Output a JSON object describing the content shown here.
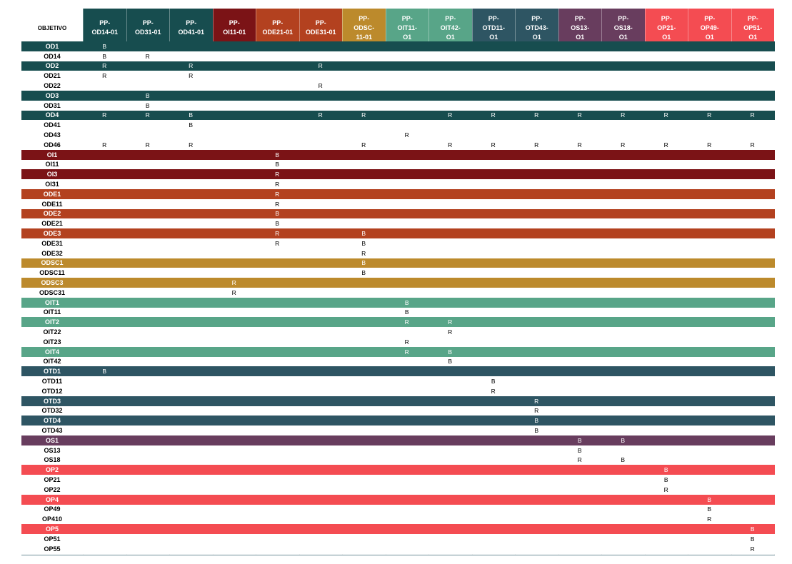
{
  "header_label": "OBJETIVO",
  "colors": {
    "OD": "#174d4f",
    "OI": "#7b1316",
    "ODE": "#b3411f",
    "ODSC": "#bc8a2c",
    "OIT": "#58a588",
    "OTD": "#2e5563",
    "OS": "#683d5e",
    "OP": "#f44c52"
  },
  "columns": [
    {
      "id": "od14",
      "label": "PP-\nOD14-01",
      "group": "OD"
    },
    {
      "id": "od31",
      "label": "PP-\nOD31-01",
      "group": "OD"
    },
    {
      "id": "od41",
      "label": "PP-\nOD41-01",
      "group": "OD"
    },
    {
      "id": "oi11",
      "label": "PP-\nOI11-01",
      "group": "OI"
    },
    {
      "id": "ode21",
      "label": "PP-\nODE21-01",
      "group": "ODE"
    },
    {
      "id": "ode31",
      "label": "PP-\nODE31-01",
      "group": "ODE"
    },
    {
      "id": "odsc11",
      "label": "PP-\nODSC-\n11-01",
      "group": "ODSC"
    },
    {
      "id": "oit11",
      "label": "PP-\nOIT11-\nO1",
      "group": "OIT"
    },
    {
      "id": "oit42",
      "label": "PP-\nOIT42-\nO1",
      "group": "OIT"
    },
    {
      "id": "otd11",
      "label": "PP-\nOTD11-\nO1",
      "group": "OTD"
    },
    {
      "id": "otd43",
      "label": "PP-\nOTD43-\nO1",
      "group": "OTD"
    },
    {
      "id": "os13",
      "label": "PP-\nOS13-\nO1",
      "group": "OS"
    },
    {
      "id": "os18",
      "label": "PP-\nOS18-\nO1",
      "group": "OS"
    },
    {
      "id": "op21",
      "label": "PP-\nOP21-\nO1",
      "group": "OP"
    },
    {
      "id": "op49",
      "label": "PP-\nOP49-\nO1",
      "group": "OP"
    },
    {
      "id": "op51",
      "label": "PP-\nOP51-\nO1",
      "group": "OP"
    }
  ],
  "rows": [
    {
      "label": "OD1",
      "type": "parent",
      "group": "OD",
      "cells": [
        "B",
        "",
        "",
        "",
        "",
        "",
        "",
        "",
        "",
        "",
        "",
        "",
        "",
        "",
        "",
        ""
      ]
    },
    {
      "label": "OD14",
      "type": "child",
      "group": "OD",
      "cells": [
        "B",
        "R",
        "",
        "",
        "",
        "",
        "",
        "",
        "",
        "",
        "",
        "",
        "",
        "",
        "",
        ""
      ]
    },
    {
      "label": "OD2",
      "type": "parent",
      "group": "OD",
      "cells": [
        "R",
        "",
        "R",
        "",
        "",
        "R",
        "",
        "",
        "",
        "",
        "",
        "",
        "",
        "",
        "",
        ""
      ]
    },
    {
      "label": "OD21",
      "type": "child",
      "group": "OD",
      "cells": [
        "R",
        "",
        "R",
        "",
        "",
        "",
        "",
        "",
        "",
        "",
        "",
        "",
        "",
        "",
        "",
        ""
      ]
    },
    {
      "label": "OD22",
      "type": "child",
      "group": "OD",
      "cells": [
        "",
        "",
        "",
        "",
        "",
        "R",
        "",
        "",
        "",
        "",
        "",
        "",
        "",
        "",
        "",
        ""
      ]
    },
    {
      "label": "OD3",
      "type": "parent",
      "group": "OD",
      "cells": [
        "",
        "B",
        "",
        "",
        "",
        "",
        "",
        "",
        "",
        "",
        "",
        "",
        "",
        "",
        "",
        ""
      ]
    },
    {
      "label": "OD31",
      "type": "child",
      "group": "OD",
      "cells": [
        "",
        "B",
        "",
        "",
        "",
        "",
        "",
        "",
        "",
        "",
        "",
        "",
        "",
        "",
        "",
        ""
      ]
    },
    {
      "label": "OD4",
      "type": "parent",
      "group": "OD",
      "cells": [
        "R",
        "R",
        "B",
        "",
        "",
        "R",
        "R",
        "",
        "R",
        "R",
        "R",
        "R",
        "R",
        "R",
        "R",
        "R"
      ]
    },
    {
      "label": "OD41",
      "type": "child",
      "group": "OD",
      "cells": [
        "",
        "",
        "B",
        "",
        "",
        "",
        "",
        "",
        "",
        "",
        "",
        "",
        "",
        "",
        "",
        ""
      ]
    },
    {
      "label": "OD43",
      "type": "child",
      "group": "OD",
      "cells": [
        "",
        "",
        "",
        "",
        "",
        "",
        "",
        "R",
        "",
        "",
        "",
        "",
        "",
        "",
        "",
        ""
      ]
    },
    {
      "label": "OD46",
      "type": "child",
      "group": "OD",
      "cells": [
        "R",
        "R",
        "R",
        "",
        "",
        "",
        "R",
        "",
        "R",
        "R",
        "R",
        "R",
        "R",
        "R",
        "R",
        "R"
      ]
    },
    {
      "label": "OI1",
      "type": "parent",
      "group": "OI",
      "cells": [
        "",
        "",
        "",
        "",
        "B",
        "",
        "",
        "",
        "",
        "",
        "",
        "",
        "",
        "",
        "",
        ""
      ]
    },
    {
      "label": "OI11",
      "type": "child",
      "group": "OI",
      "cells": [
        "",
        "",
        "",
        "",
        "B",
        "",
        "",
        "",
        "",
        "",
        "",
        "",
        "",
        "",
        "",
        ""
      ]
    },
    {
      "label": "OI3",
      "type": "parent",
      "group": "OI",
      "cells": [
        "",
        "",
        "",
        "",
        "R",
        "",
        "",
        "",
        "",
        "",
        "",
        "",
        "",
        "",
        "",
        ""
      ]
    },
    {
      "label": "OI31",
      "type": "child",
      "group": "OI",
      "cells": [
        "",
        "",
        "",
        "",
        "R",
        "",
        "",
        "",
        "",
        "",
        "",
        "",
        "",
        "",
        "",
        ""
      ]
    },
    {
      "label": "ODE1",
      "type": "parent",
      "group": "ODE",
      "cells": [
        "",
        "",
        "",
        "",
        "R",
        "",
        "",
        "",
        "",
        "",
        "",
        "",
        "",
        "",
        "",
        ""
      ]
    },
    {
      "label": "ODE11",
      "type": "child",
      "group": "ODE",
      "cells": [
        "",
        "",
        "",
        "",
        "R",
        "",
        "",
        "",
        "",
        "",
        "",
        "",
        "",
        "",
        "",
        ""
      ]
    },
    {
      "label": "ODE2",
      "type": "parent",
      "group": "ODE",
      "cells": [
        "",
        "",
        "",
        "",
        "B",
        "",
        "",
        "",
        "",
        "",
        "",
        "",
        "",
        "",
        "",
        ""
      ]
    },
    {
      "label": "ODE21",
      "type": "child",
      "group": "ODE",
      "cells": [
        "",
        "",
        "",
        "",
        "B",
        "",
        "",
        "",
        "",
        "",
        "",
        "",
        "",
        "",
        "",
        ""
      ]
    },
    {
      "label": "ODE3",
      "type": "parent",
      "group": "ODE",
      "cells": [
        "",
        "",
        "",
        "",
        "R",
        "",
        "B",
        "",
        "",
        "",
        "",
        "",
        "",
        "",
        "",
        ""
      ]
    },
    {
      "label": "ODE31",
      "type": "child",
      "group": "ODE",
      "cells": [
        "",
        "",
        "",
        "",
        "R",
        "",
        "B",
        "",
        "",
        "",
        "",
        "",
        "",
        "",
        "",
        ""
      ]
    },
    {
      "label": "ODE32",
      "type": "child",
      "group": "ODE",
      "cells": [
        "",
        "",
        "",
        "",
        "",
        "",
        "R",
        "",
        "",
        "",
        "",
        "",
        "",
        "",
        "",
        ""
      ]
    },
    {
      "label": "ODSC1",
      "type": "parent",
      "group": "ODSC",
      "cells": [
        "",
        "",
        "",
        "",
        "",
        "",
        "B",
        "",
        "",
        "",
        "",
        "",
        "",
        "",
        "",
        ""
      ]
    },
    {
      "label": "ODSC11",
      "type": "child",
      "group": "ODSC",
      "cells": [
        "",
        "",
        "",
        "",
        "",
        "",
        "B",
        "",
        "",
        "",
        "",
        "",
        "",
        "",
        "",
        ""
      ]
    },
    {
      "label": "ODSC3",
      "type": "parent",
      "group": "ODSC",
      "cells": [
        "",
        "",
        "",
        "R",
        "",
        "",
        "",
        "",
        "",
        "",
        "",
        "",
        "",
        "",
        "",
        ""
      ]
    },
    {
      "label": "ODSC31",
      "type": "child",
      "group": "ODSC",
      "cells": [
        "",
        "",
        "",
        "R",
        "",
        "",
        "",
        "",
        "",
        "",
        "",
        "",
        "",
        "",
        "",
        ""
      ]
    },
    {
      "label": "OIT1",
      "type": "parent",
      "group": "OIT",
      "cells": [
        "",
        "",
        "",
        "",
        "",
        "",
        "",
        "B",
        "",
        "",
        "",
        "",
        "",
        "",
        "",
        ""
      ]
    },
    {
      "label": "OIT11",
      "type": "child",
      "group": "OIT",
      "cells": [
        "",
        "",
        "",
        "",
        "",
        "",
        "",
        "B",
        "",
        "",
        "",
        "",
        "",
        "",
        "",
        ""
      ]
    },
    {
      "label": "OIT2",
      "type": "parent",
      "group": "OIT",
      "cells": [
        "",
        "",
        "",
        "",
        "",
        "",
        "",
        "R",
        "R",
        "",
        "",
        "",
        "",
        "",
        "",
        ""
      ]
    },
    {
      "label": "OIT22",
      "type": "child",
      "group": "OIT",
      "cells": [
        "",
        "",
        "",
        "",
        "",
        "",
        "",
        "",
        "R",
        "",
        "",
        "",
        "",
        "",
        "",
        ""
      ]
    },
    {
      "label": "OIT23",
      "type": "child",
      "group": "OIT",
      "cells": [
        "",
        "",
        "",
        "",
        "",
        "",
        "",
        "R",
        "",
        "",
        "",
        "",
        "",
        "",
        "",
        ""
      ]
    },
    {
      "label": "OIT4",
      "type": "parent",
      "group": "OIT",
      "cells": [
        "",
        "",
        "",
        "",
        "",
        "",
        "",
        "R",
        "B",
        "",
        "",
        "",
        "",
        "",
        "",
        ""
      ]
    },
    {
      "label": "OIT42",
      "type": "child",
      "group": "OIT",
      "cells": [
        "",
        "",
        "",
        "",
        "",
        "",
        "",
        "",
        "B",
        "",
        "",
        "",
        "",
        "",
        "",
        ""
      ]
    },
    {
      "label": "OTD1",
      "type": "parent",
      "group": "OTD",
      "cells": [
        "B",
        "",
        "",
        "",
        "",
        "",
        "",
        "",
        "",
        "",
        "",
        "",
        "",
        "",
        "",
        ""
      ]
    },
    {
      "label": "OTD11",
      "type": "child",
      "group": "OTD",
      "cells": [
        "",
        "",
        "",
        "",
        "",
        "",
        "",
        "",
        "",
        "B",
        "",
        "",
        "",
        "",
        "",
        ""
      ]
    },
    {
      "label": "OTD12",
      "type": "child",
      "group": "OTD",
      "cells": [
        "",
        "",
        "",
        "",
        "",
        "",
        "",
        "",
        "",
        "R",
        "",
        "",
        "",
        "",
        "",
        ""
      ]
    },
    {
      "label": "OTD3",
      "type": "parent",
      "group": "OTD",
      "cells": [
        "",
        "",
        "",
        "",
        "",
        "",
        "",
        "",
        "",
        "",
        "R",
        "",
        "",
        "",
        "",
        ""
      ]
    },
    {
      "label": "OTD32",
      "type": "child",
      "group": "OTD",
      "cells": [
        "",
        "",
        "",
        "",
        "",
        "",
        "",
        "",
        "",
        "",
        "R",
        "",
        "",
        "",
        "",
        ""
      ]
    },
    {
      "label": "OTD4",
      "type": "parent",
      "group": "OTD",
      "cells": [
        "",
        "",
        "",
        "",
        "",
        "",
        "",
        "",
        "",
        "",
        "B",
        "",
        "",
        "",
        "",
        ""
      ]
    },
    {
      "label": "OTD43",
      "type": "child",
      "group": "OTD",
      "cells": [
        "",
        "",
        "",
        "",
        "",
        "",
        "",
        "",
        "",
        "",
        "B",
        "",
        "",
        "",
        "",
        ""
      ]
    },
    {
      "label": "OS1",
      "type": "parent",
      "group": "OS",
      "cells": [
        "",
        "",
        "",
        "",
        "",
        "",
        "",
        "",
        "",
        "",
        "",
        "B",
        "B",
        "",
        "",
        ""
      ]
    },
    {
      "label": "OS13",
      "type": "child",
      "group": "OS",
      "cells": [
        "",
        "",
        "",
        "",
        "",
        "",
        "",
        "",
        "",
        "",
        "",
        "B",
        "",
        "",
        "",
        ""
      ]
    },
    {
      "label": "OS18",
      "type": "child",
      "group": "OS",
      "cells": [
        "",
        "",
        "",
        "",
        "",
        "",
        "",
        "",
        "",
        "",
        "",
        "R",
        "B",
        "",
        "",
        ""
      ]
    },
    {
      "label": "OP2",
      "type": "parent",
      "group": "OP",
      "cells": [
        "",
        "",
        "",
        "",
        "",
        "",
        "",
        "",
        "",
        "",
        "",
        "",
        "",
        "B",
        "",
        ""
      ]
    },
    {
      "label": "OP21",
      "type": "child",
      "group": "OP",
      "cells": [
        "",
        "",
        "",
        "",
        "",
        "",
        "",
        "",
        "",
        "",
        "",
        "",
        "",
        "B",
        "",
        ""
      ]
    },
    {
      "label": "OP22",
      "type": "child",
      "group": "OP",
      "cells": [
        "",
        "",
        "",
        "",
        "",
        "",
        "",
        "",
        "",
        "",
        "",
        "",
        "",
        "R",
        "",
        ""
      ]
    },
    {
      "label": "OP4",
      "type": "parent",
      "group": "OP",
      "cells": [
        "",
        "",
        "",
        "",
        "",
        "",
        "",
        "",
        "",
        "",
        "",
        "",
        "",
        "",
        "B",
        ""
      ]
    },
    {
      "label": "OP49",
      "type": "child",
      "group": "OP",
      "cells": [
        "",
        "",
        "",
        "",
        "",
        "",
        "",
        "",
        "",
        "",
        "",
        "",
        "",
        "",
        "B",
        ""
      ]
    },
    {
      "label": "OP410",
      "type": "child",
      "group": "OP",
      "cells": [
        "",
        "",
        "",
        "",
        "",
        "",
        "",
        "",
        "",
        "",
        "",
        "",
        "",
        "",
        "R",
        ""
      ]
    },
    {
      "label": "OP5",
      "type": "parent",
      "group": "OP",
      "cells": [
        "",
        "",
        "",
        "",
        "",
        "",
        "",
        "",
        "",
        "",
        "",
        "",
        "",
        "",
        "",
        "B"
      ]
    },
    {
      "label": "OP51",
      "type": "child",
      "group": "OP",
      "cells": [
        "",
        "",
        "",
        "",
        "",
        "",
        "",
        "",
        "",
        "",
        "",
        "",
        "",
        "",
        "",
        "B"
      ]
    },
    {
      "label": "OP55",
      "type": "child",
      "group": "OP",
      "cells": [
        "",
        "",
        "",
        "",
        "",
        "",
        "",
        "",
        "",
        "",
        "",
        "",
        "",
        "",
        "",
        "R"
      ]
    }
  ]
}
